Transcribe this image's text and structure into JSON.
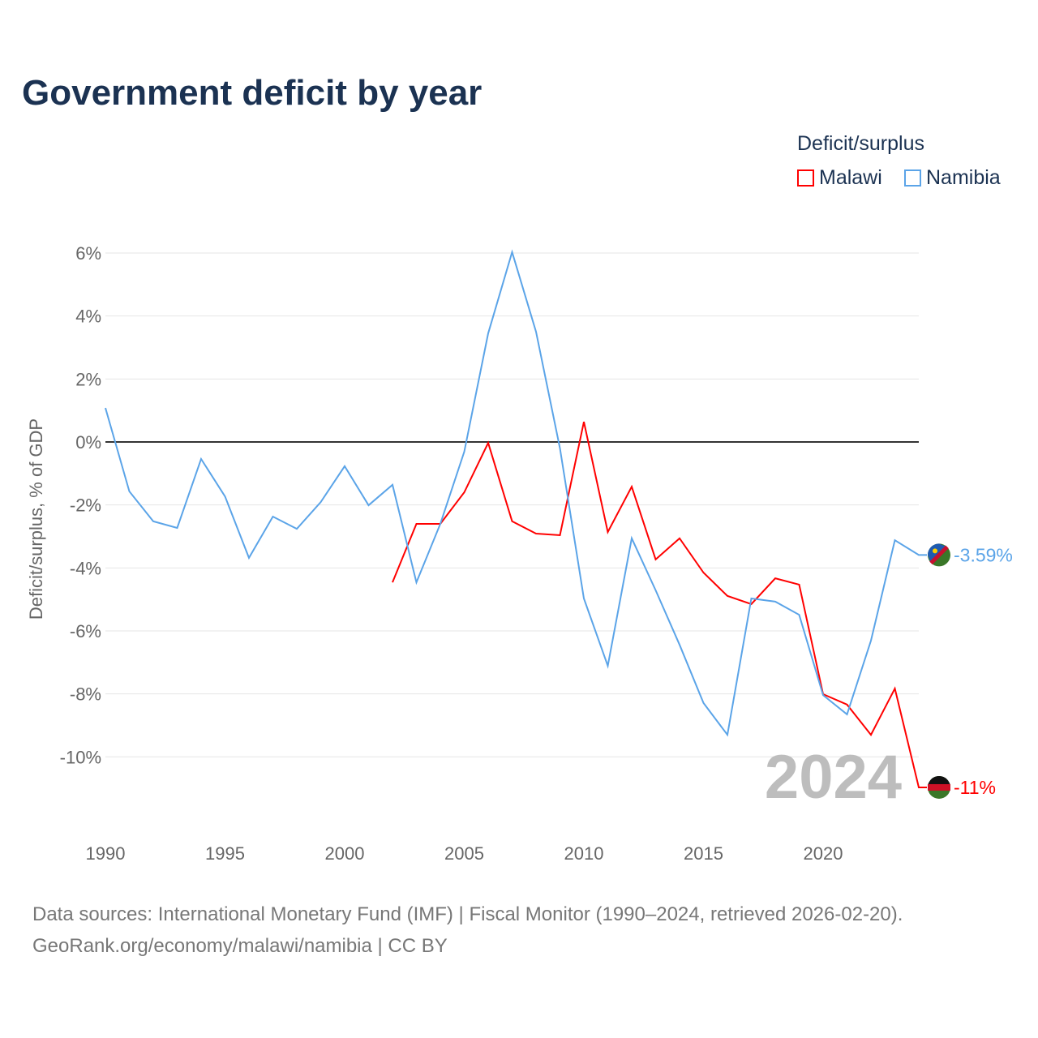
{
  "chart_data": {
    "type": "line",
    "title": "Government deficit by year",
    "ylabel": "Deficit/surplus, % of GDP",
    "xlabel": "",
    "legend_title": "Deficit/surplus",
    "legend_position": "top-right",
    "xlim": [
      1990,
      2024
    ],
    "ylim": [
      -12,
      6.5
    ],
    "x_ticks": [
      1990,
      1995,
      2000,
      2005,
      2010,
      2015,
      2020
    ],
    "y_ticks": [
      6,
      4,
      2,
      0,
      -2,
      -4,
      -6,
      -8,
      -10
    ],
    "y_tick_labels": [
      "6%",
      "4%",
      "2%",
      "0%",
      "-2%",
      "-4%",
      "-6%",
      "-8%",
      "-10%"
    ],
    "year_watermark": "2024",
    "series": [
      {
        "name": "Malawi",
        "color": "#ff0000",
        "end_label": "-11%",
        "x": [
          2002,
          2003,
          2004,
          2005,
          2006,
          2007,
          2008,
          2009,
          2010,
          2011,
          2012,
          2013,
          2014,
          2015,
          2016,
          2017,
          2018,
          2019,
          2020,
          2021,
          2022,
          2023,
          2024
        ],
        "values": [
          -4.46,
          -2.6,
          -2.6,
          -1.6,
          -0.03,
          -2.52,
          -2.91,
          -2.96,
          0.64,
          -2.86,
          -1.42,
          -3.73,
          -3.06,
          -4.15,
          -4.89,
          -5.15,
          -4.33,
          -4.53,
          -8.01,
          -8.34,
          -9.3,
          -7.83,
          -10.97
        ]
      },
      {
        "name": "Namibia",
        "color": "#5ba4e8",
        "end_label": "-3.59%",
        "x": [
          1990,
          1991,
          1992,
          1993,
          1994,
          1995,
          1996,
          1997,
          1998,
          1999,
          2000,
          2001,
          2002,
          2003,
          2004,
          2005,
          2006,
          2007,
          2008,
          2009,
          2010,
          2011,
          2012,
          2013,
          2014,
          2015,
          2016,
          2017,
          2018,
          2019,
          2020,
          2021,
          2022,
          2023,
          2024
        ],
        "values": [
          1.08,
          -1.57,
          -2.52,
          -2.73,
          -0.54,
          -1.73,
          -3.68,
          -2.37,
          -2.76,
          -1.91,
          -0.77,
          -2.01,
          -1.36,
          -4.46,
          -2.6,
          -0.31,
          3.45,
          6.03,
          3.5,
          -0.2,
          -4.97,
          -7.11,
          -3.06,
          -4.71,
          -6.44,
          -8.29,
          -9.3,
          -4.97,
          -5.07,
          -5.49,
          -8.04,
          -8.65,
          -6.31,
          -3.12,
          -3.59
        ]
      }
    ],
    "source_line1": "Data sources: International Monetary Fund (IMF) | Fiscal Monitor (1990–2024, retrieved 2026-02-20).",
    "source_line2": "GeoRank.org/economy/malawi/namibia | CC BY"
  }
}
